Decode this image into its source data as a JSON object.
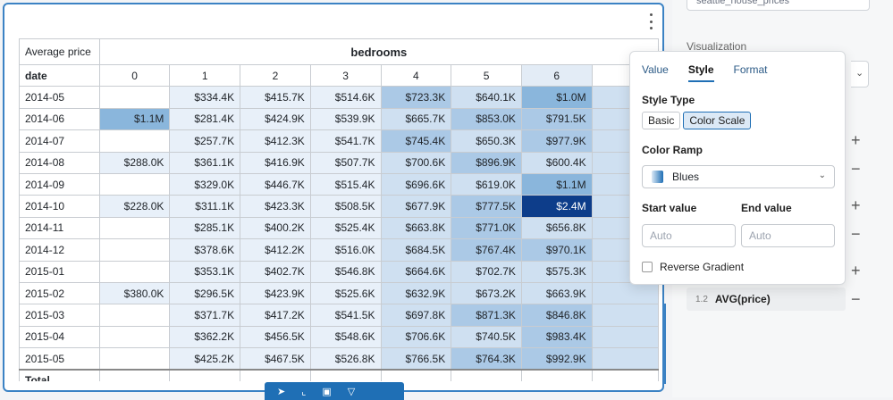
{
  "table": {
    "corner_label": "Average price",
    "group_label": "bedrooms",
    "row_header_label": "date",
    "columns": [
      "0",
      "1",
      "2",
      "3",
      "4",
      "5",
      "6"
    ],
    "rows": [
      {
        "date": "2014-05",
        "cells": [
          "",
          "$334.4K",
          "$415.7K",
          "$514.6K",
          "$723.3K",
          "$640.1K",
          "$1.0M"
        ],
        "shade": [
          0,
          1,
          1,
          1,
          3,
          2,
          4
        ]
      },
      {
        "date": "2014-06",
        "cells": [
          "$1.1M",
          "$281.4K",
          "$424.9K",
          "$539.9K",
          "$665.7K",
          "$853.0K",
          "$791.5K"
        ],
        "shade": [
          4,
          1,
          1,
          1,
          2,
          3,
          3
        ]
      },
      {
        "date": "2014-07",
        "cells": [
          "",
          "$257.7K",
          "$412.3K",
          "$541.7K",
          "$745.4K",
          "$650.3K",
          "$977.9K"
        ],
        "shade": [
          0,
          1,
          1,
          1,
          3,
          2,
          3
        ]
      },
      {
        "date": "2014-08",
        "cells": [
          "$288.0K",
          "$361.1K",
          "$416.9K",
          "$507.7K",
          "$700.6K",
          "$896.9K",
          "$600.4K"
        ],
        "shade": [
          1,
          1,
          1,
          1,
          2,
          3,
          2
        ]
      },
      {
        "date": "2014-09",
        "cells": [
          "",
          "$329.0K",
          "$446.7K",
          "$515.4K",
          "$696.6K",
          "$619.0K",
          "$1.1M"
        ],
        "shade": [
          0,
          1,
          1,
          1,
          2,
          2,
          4
        ]
      },
      {
        "date": "2014-10",
        "cells": [
          "$228.0K",
          "$311.1K",
          "$423.3K",
          "$508.5K",
          "$677.9K",
          "$777.5K",
          "$2.4M"
        ],
        "shade": [
          1,
          1,
          1,
          1,
          2,
          3,
          5
        ]
      },
      {
        "date": "2014-11",
        "cells": [
          "",
          "$285.1K",
          "$400.2K",
          "$525.4K",
          "$663.8K",
          "$771.0K",
          "$656.8K"
        ],
        "shade": [
          0,
          1,
          1,
          1,
          2,
          3,
          2
        ]
      },
      {
        "date": "2014-12",
        "cells": [
          "",
          "$378.6K",
          "$412.2K",
          "$516.0K",
          "$684.5K",
          "$767.4K",
          "$970.1K"
        ],
        "shade": [
          0,
          1,
          1,
          1,
          2,
          3,
          3
        ]
      },
      {
        "date": "2015-01",
        "cells": [
          "",
          "$353.1K",
          "$402.7K",
          "$546.8K",
          "$664.6K",
          "$702.7K",
          "$575.3K"
        ],
        "shade": [
          0,
          1,
          1,
          1,
          2,
          2,
          2
        ]
      },
      {
        "date": "2015-02",
        "cells": [
          "$380.0K",
          "$296.5K",
          "$423.9K",
          "$525.6K",
          "$632.9K",
          "$673.2K",
          "$663.9K"
        ],
        "shade": [
          1,
          1,
          1,
          1,
          2,
          2,
          2
        ]
      },
      {
        "date": "2015-03",
        "cells": [
          "",
          "$371.7K",
          "$417.2K",
          "$541.5K",
          "$697.8K",
          "$871.3K",
          "$846.8K"
        ],
        "shade": [
          0,
          1,
          1,
          1,
          2,
          3,
          3
        ]
      },
      {
        "date": "2015-04",
        "cells": [
          "",
          "$362.2K",
          "$456.5K",
          "$548.6K",
          "$706.6K",
          "$740.5K",
          "$983.4K"
        ],
        "shade": [
          0,
          1,
          1,
          1,
          2,
          2,
          3
        ]
      },
      {
        "date": "2015-05",
        "cells": [
          "",
          "$425.2K",
          "$467.5K",
          "$526.8K",
          "$766.5K",
          "$764.3K",
          "$992.9K"
        ],
        "shade": [
          0,
          1,
          1,
          1,
          2,
          3,
          3
        ]
      }
    ],
    "total_label": "Total"
  },
  "colors": {
    "accent": "#1f6fb5",
    "shade_1": "#e8f0f9",
    "shade_2": "#cfe0f1",
    "shade_3": "#abc9e6",
    "shade_4": "#8ab6dc",
    "shade_5": "#0d3d8a"
  },
  "toolbar": {
    "icons": [
      "pointer-icon",
      "chart-icon",
      "table-icon",
      "filter-icon"
    ],
    "glyphs": [
      "➤",
      "⌞",
      "▣",
      "▽"
    ]
  },
  "sidebar": {
    "datasource": "seattle_house_prices",
    "visualization_label": "Visualization",
    "measure_type": "1.2",
    "measure_name": "AVG(price)",
    "plus": "+",
    "minus": "−"
  },
  "popover": {
    "tabs": [
      "Value",
      "Style",
      "Format"
    ],
    "active_tab": "Style",
    "style_type_label": "Style Type",
    "style_options": [
      "Basic",
      "Color Scale"
    ],
    "selected_style": "Color Scale",
    "color_ramp_label": "Color Ramp",
    "color_ramp_value": "Blues",
    "start_value_label": "Start value",
    "end_value_label": "End value",
    "start_placeholder": "Auto",
    "end_placeholder": "Auto",
    "reverse_label": "Reverse Gradient"
  }
}
